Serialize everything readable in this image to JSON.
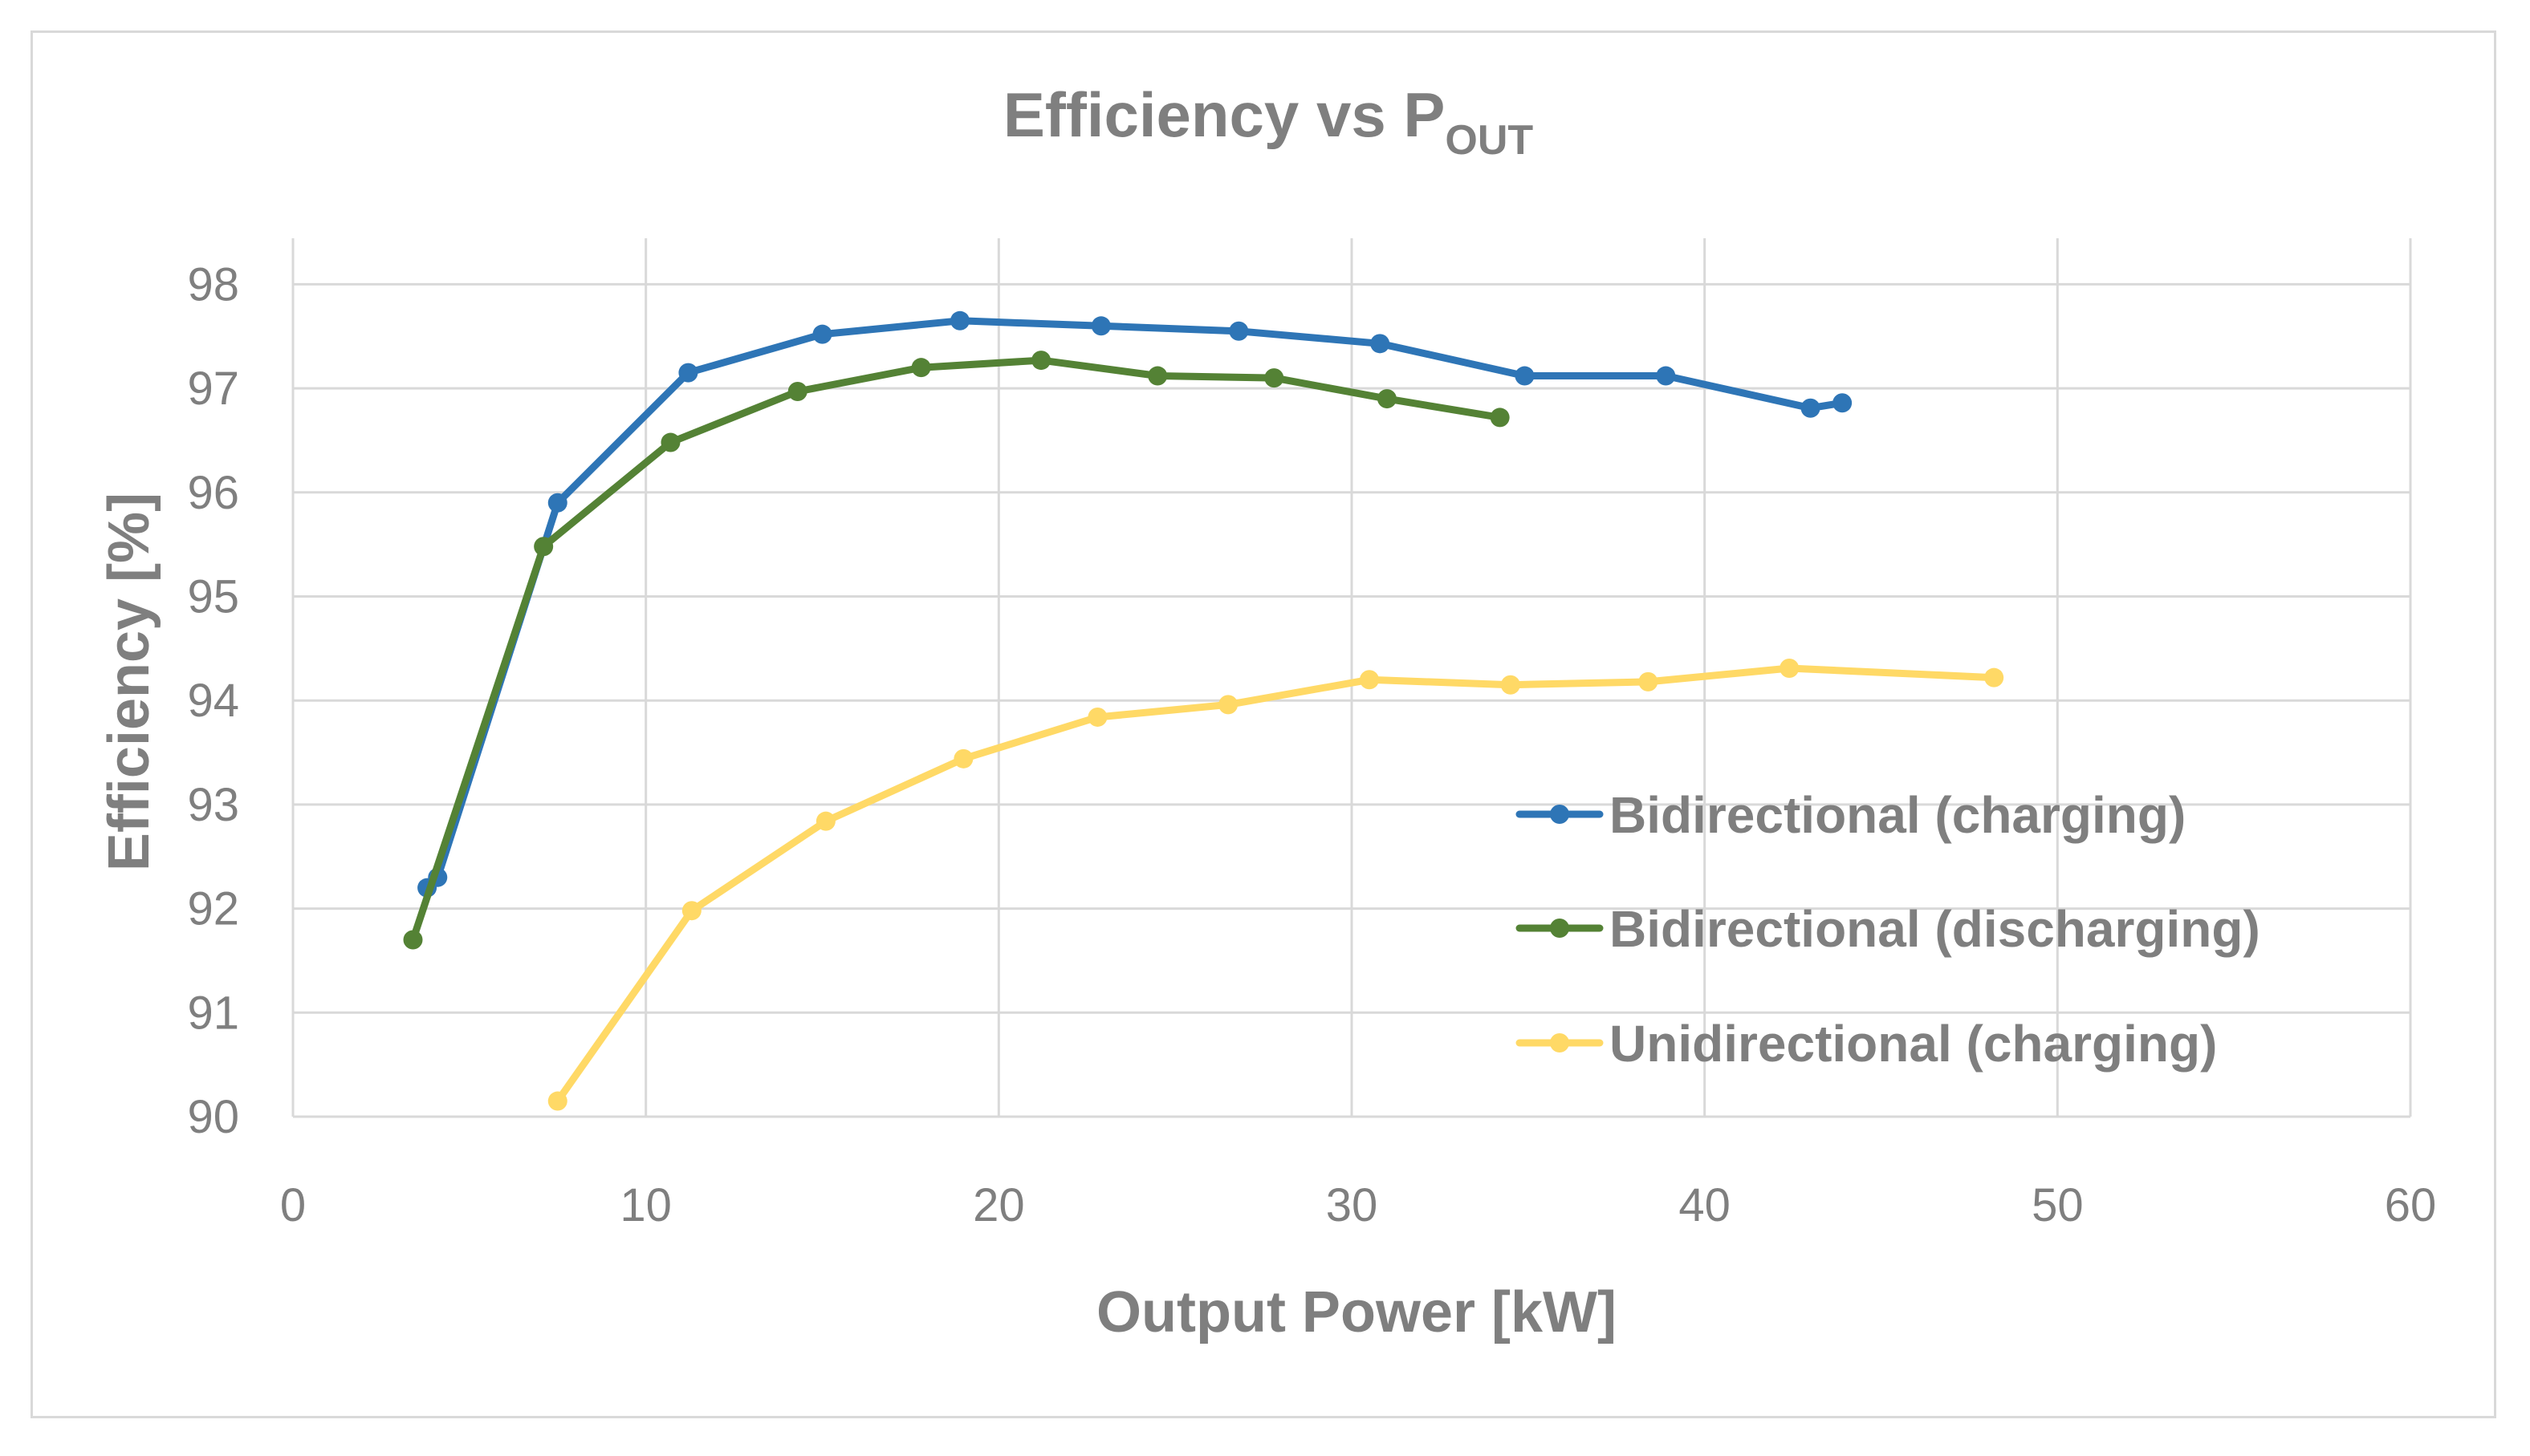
{
  "chart_data": {
    "type": "line",
    "title_main": "Efficiency vs P",
    "title_sub": "OUT",
    "xlabel": "Output Power [kW]",
    "ylabel": "Efficiency [%]",
    "xlim": [
      0,
      60
    ],
    "ylim": [
      90,
      98.5
    ],
    "xticks": [
      0,
      10,
      20,
      30,
      40,
      50,
      60
    ],
    "yticks": [
      90,
      91,
      92,
      93,
      94,
      95,
      96,
      97,
      98
    ],
    "grid": true,
    "legend_position": "right-middle",
    "series": [
      {
        "name": "Bidirectional (charging)",
        "color": "#2e75b6",
        "x": [
          3.8,
          4.1,
          7.5,
          11.2,
          15.0,
          18.9,
          22.9,
          26.8,
          30.8,
          34.9,
          38.9,
          43.0,
          43.9
        ],
        "y": [
          92.2,
          92.3,
          95.9,
          97.15,
          97.52,
          97.65,
          97.6,
          97.55,
          97.43,
          97.12,
          97.12,
          96.81,
          96.86
        ]
      },
      {
        "name": "Bidirectional (discharging)",
        "color": "#548235",
        "x": [
          3.4,
          7.1,
          10.7,
          14.3,
          17.8,
          21.2,
          24.5,
          27.8,
          31.0,
          34.2
        ],
        "y": [
          91.7,
          95.48,
          96.48,
          96.97,
          97.2,
          97.27,
          97.12,
          97.1,
          96.9,
          96.72
        ]
      },
      {
        "name": "Unidirectional (charging)",
        "color": "#ffd966",
        "x": [
          7.5,
          11.3,
          15.1,
          19.0,
          22.8,
          26.5,
          30.5,
          34.5,
          38.4,
          42.4,
          48.2
        ],
        "y": [
          90.15,
          91.98,
          92.84,
          93.44,
          93.84,
          93.96,
          94.2,
          94.15,
          94.18,
          94.31,
          94.22
        ]
      }
    ]
  }
}
